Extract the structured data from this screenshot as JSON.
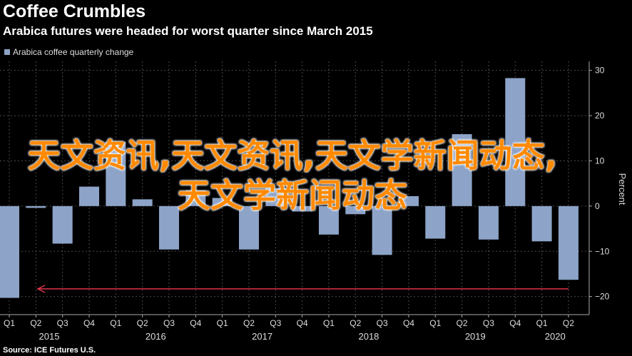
{
  "header": {
    "title": "Coffee Crumbles",
    "subtitle": "Arabica futures were headed for worst quarter since March 2015"
  },
  "footer": {
    "source": "Source: ICE Futures U.S."
  },
  "overlay_text": "天文资讯,天文资讯,天文学新闻动态,天文学新闻动态",
  "colors": {
    "bar": "#8da3c7",
    "arrow": "#e0344b",
    "background": "#000000",
    "grid": "#4a4a4a"
  },
  "chart_data": {
    "type": "bar",
    "categories": [
      "Q1",
      "Q2",
      "Q3",
      "Q4",
      "Q1",
      "Q2",
      "Q3",
      "Q4",
      "Q1",
      "Q2",
      "Q3",
      "Q4",
      "Q1",
      "Q2",
      "Q3",
      "Q4",
      "Q1",
      "Q2",
      "Q3",
      "Q4",
      "Q1",
      "Q2"
    ],
    "years": [
      {
        "label": "2015",
        "quarters": [
          0,
          3
        ]
      },
      {
        "label": "2016",
        "quarters": [
          4,
          7
        ]
      },
      {
        "label": "2017",
        "quarters": [
          8,
          11
        ]
      },
      {
        "label": "2018",
        "quarters": [
          12,
          15
        ]
      },
      {
        "label": "2019",
        "quarters": [
          16,
          19
        ]
      },
      {
        "label": "2020",
        "quarters": [
          20,
          21
        ]
      }
    ],
    "series": [
      {
        "name": "Arabica coffee quarterly change",
        "values": [
          -20.3,
          -0.4,
          -8.3,
          4.3,
          14.2,
          1.5,
          -9.6,
          3.5,
          1.8,
          -9.6,
          4.0,
          -1.2,
          -6.3,
          -1.8,
          -10.8,
          2.2,
          -7.2,
          15.9,
          -7.4,
          28.3,
          -7.8,
          -16.3
        ]
      }
    ],
    "ylim": [
      -24,
      32
    ],
    "yticks": [
      -20,
      -10,
      0,
      10,
      20,
      30
    ],
    "ylabel": "Percent",
    "xlabel": "",
    "legend": "top-left",
    "grid": true,
    "annotation": {
      "type": "arrow",
      "from_quarter": 21,
      "to_quarter": 0,
      "y": -18.3
    }
  }
}
